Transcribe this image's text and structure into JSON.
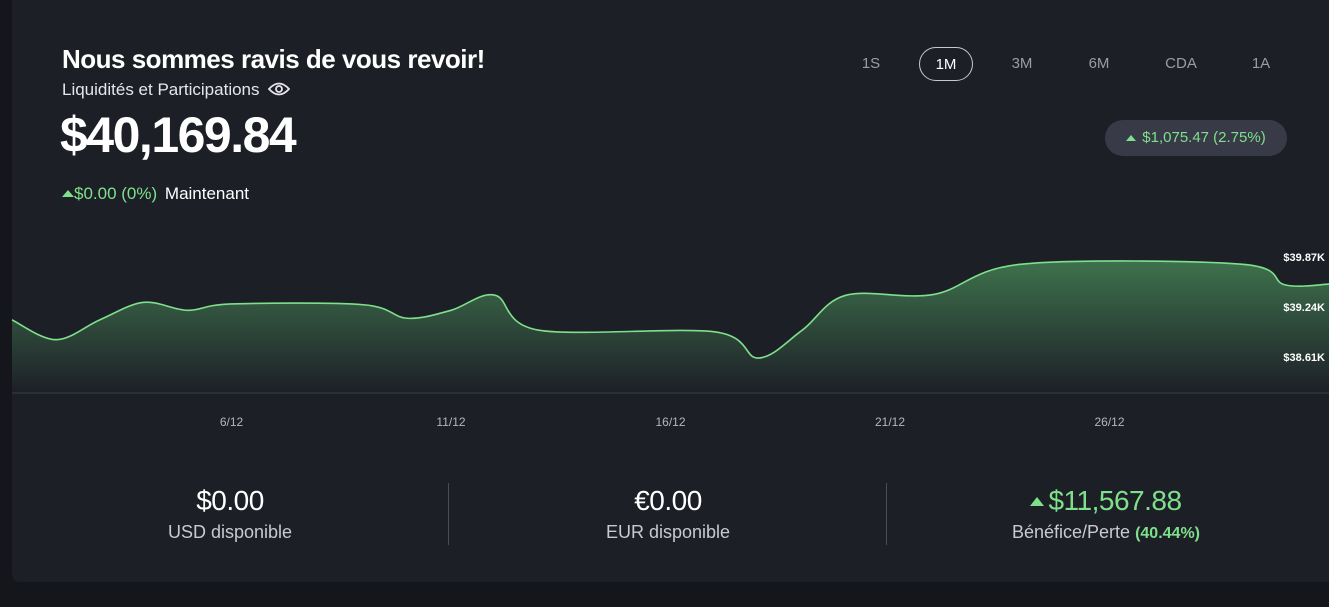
{
  "header": {
    "title": "Nous sommes ravis de vous revoir!",
    "subtitle": "Liquidités et Participations",
    "balance": "$40,169.84",
    "change": "$0.00 (0%)",
    "change_period": "Maintenant"
  },
  "timeframes": {
    "options": [
      "1S",
      "1M",
      "3M",
      "6M",
      "CDA",
      "1A"
    ],
    "selected_index": 1
  },
  "period_change": "$1,075.47 (2.75%)",
  "chart_data": {
    "type": "area",
    "color": "#7ee08a",
    "x": [
      1,
      2,
      3,
      4,
      5,
      6,
      9,
      10,
      11,
      12,
      13,
      17,
      18,
      19,
      20,
      22,
      24,
      29,
      30,
      31
    ],
    "values": [
      39080,
      38830,
      39080,
      39300,
      39200,
      39280,
      39270,
      39100,
      39200,
      39390,
      38950,
      38930,
      38600,
      38950,
      39390,
      39400,
      39780,
      39780,
      39520,
      39530
    ],
    "xlim": [
      1,
      31
    ],
    "ylim": [
      38160,
      40210
    ],
    "xticks": [
      {
        "value": 6,
        "label": "6/12"
      },
      {
        "value": 11,
        "label": "11/12"
      },
      {
        "value": 16,
        "label": "16/12"
      },
      {
        "value": 21,
        "label": "21/12"
      },
      {
        "value": 26,
        "label": "26/12"
      }
    ],
    "yticks": [
      {
        "value": 39870,
        "label": "$39.87K"
      },
      {
        "value": 39240,
        "label": "$39.24K"
      },
      {
        "value": 38610,
        "label": "$38.61K"
      }
    ],
    "grid": false
  },
  "stats": [
    {
      "value": "$0.00",
      "label": "USD disponible"
    },
    {
      "value": "€0.00",
      "label": "EUR disponible"
    },
    {
      "value": "$11,567.88",
      "label": "Bénéfice/Perte",
      "percent": "(40.44%)"
    }
  ]
}
